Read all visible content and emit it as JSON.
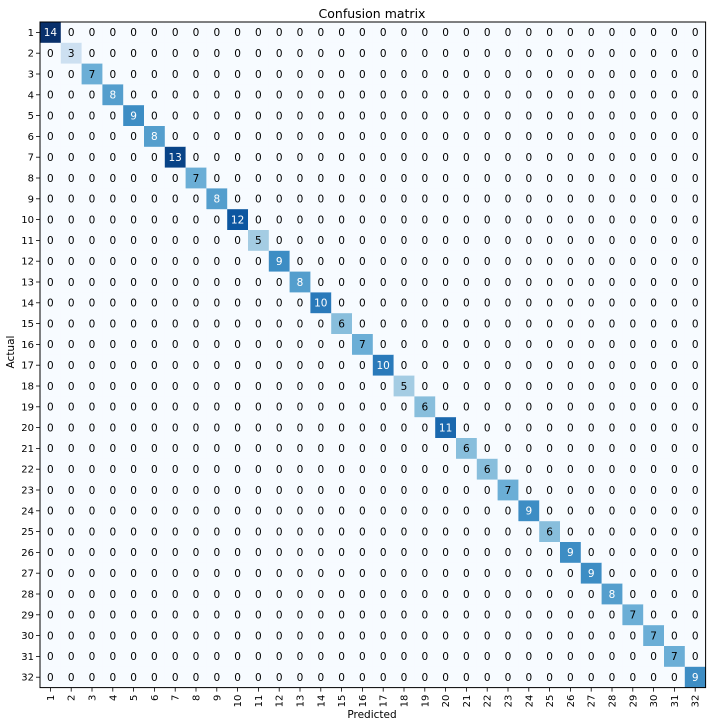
{
  "chart_data": {
    "type": "heatmap",
    "title": "Confusion matrix",
    "xlabel": "Predicted",
    "ylabel": "Actual",
    "x_categories": [
      "1",
      "2",
      "3",
      "4",
      "5",
      "6",
      "7",
      "8",
      "9",
      "10",
      "11",
      "12",
      "13",
      "14",
      "15",
      "16",
      "17",
      "18",
      "19",
      "20",
      "21",
      "22",
      "23",
      "24",
      "25",
      "26",
      "27",
      "28",
      "29",
      "30",
      "31",
      "32"
    ],
    "y_categories": [
      "1",
      "2",
      "3",
      "4",
      "5",
      "6",
      "7",
      "8",
      "9",
      "10",
      "11",
      "12",
      "13",
      "14",
      "15",
      "16",
      "17",
      "18",
      "19",
      "20",
      "21",
      "22",
      "23",
      "24",
      "25",
      "26",
      "27",
      "28",
      "29",
      "30",
      "31",
      "32"
    ],
    "diagonal_values": [
      14,
      3,
      7,
      8,
      9,
      8,
      13,
      7,
      8,
      12,
      5,
      9,
      8,
      10,
      6,
      7,
      10,
      5,
      6,
      11,
      6,
      6,
      7,
      9,
      6,
      9,
      9,
      8,
      7,
      7,
      7,
      9
    ],
    "off_diagonal_value": 0,
    "colormap": "Blues",
    "grid": false,
    "color_low": "#f7fbff",
    "color_high": "#08306b"
  }
}
